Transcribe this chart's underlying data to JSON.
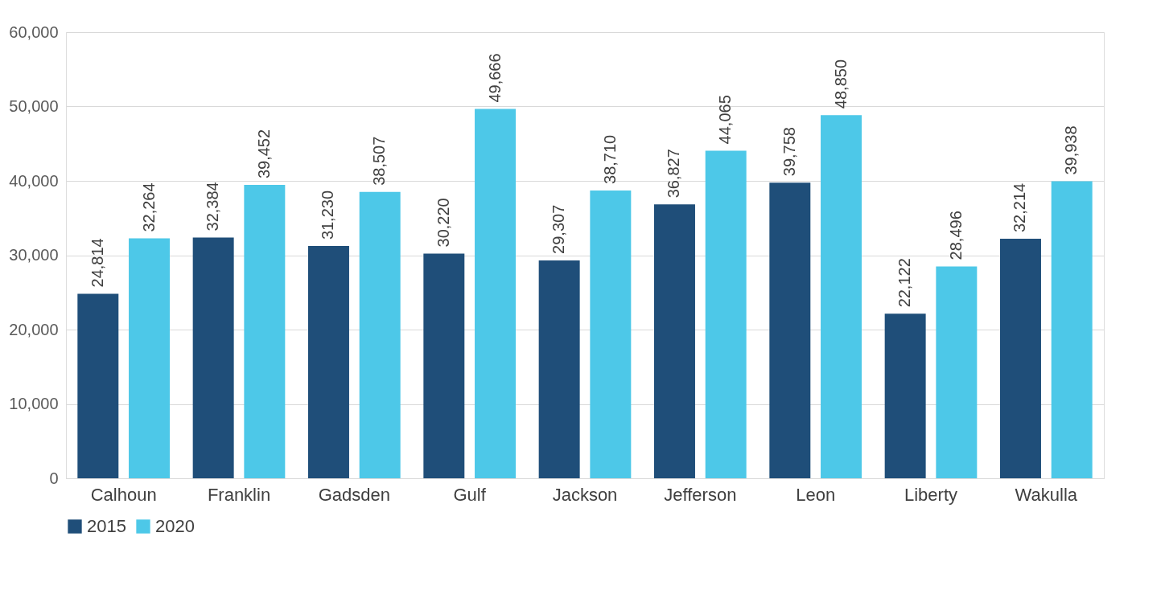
{
  "chart_data": {
    "type": "bar",
    "categories": [
      "Calhoun",
      "Franklin",
      "Gadsden",
      "Gulf",
      "Jackson",
      "Jefferson",
      "Leon",
      "Liberty",
      "Wakulla"
    ],
    "series": [
      {
        "name": "2015",
        "color": "#1f4e79",
        "values": [
          24814,
          32384,
          31230,
          30220,
          29307,
          36827,
          39758,
          22122,
          32214
        ],
        "value_labels": [
          "24,814",
          "32,384",
          "31,230",
          "30,220",
          "29,307",
          "36,827",
          "39,758",
          "22,122",
          "32,214"
        ]
      },
      {
        "name": "2020",
        "color": "#4dc8e8",
        "values": [
          32264,
          39452,
          38507,
          49666,
          38710,
          44065,
          48850,
          28496,
          39938
        ],
        "value_labels": [
          "32,264",
          "39,452",
          "38,507",
          "49,666",
          "38,710",
          "44,065",
          "48,850",
          "28,496",
          "39,938"
        ]
      }
    ],
    "ylim": [
      0,
      60000
    ],
    "yticks": [
      0,
      {
        "value": 10000,
        "label": "10,000"
      },
      {
        "value": 20000,
        "label": "20,000"
      },
      {
        "value": 30000,
        "label": "30,000"
      },
      {
        "value": 40000,
        "label": "40,000"
      },
      {
        "value": 50000,
        "label": "50,000"
      },
      {
        "value": 60000,
        "label": "60,000"
      }
    ],
    "grid": "y",
    "legend": "bottom"
  }
}
